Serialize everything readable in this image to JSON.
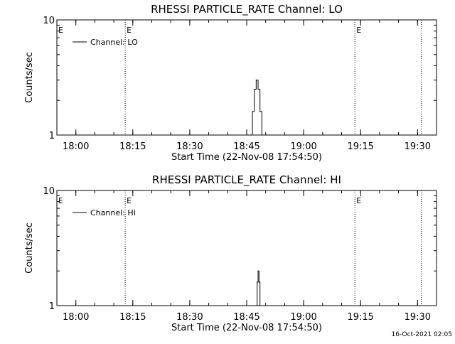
{
  "timestamp": "16-Oct-2021 02:05",
  "chart_data": [
    {
      "type": "line",
      "title": "RHESSI PARTICLE_RATE Channel: LO",
      "xlabel": "Start Time (22-Nov-08 17:54:50)",
      "ylabel": "Counts/sec",
      "y_scale": "log",
      "ylim": [
        1,
        10
      ],
      "y_ticks": [
        {
          "value": 1,
          "label": "1"
        },
        {
          "value": 10,
          "label": "10"
        }
      ],
      "xlim": [
        "17:55:00",
        "19:35:00"
      ],
      "x_ticks": [
        "18:00",
        "18:15",
        "18:30",
        "18:45",
        "19:00",
        "19:15",
        "19:30"
      ],
      "legend": {
        "placement": "top-left",
        "label": "Channel: LO"
      },
      "grid": false,
      "event_lines": [
        {
          "time": "18:13:00",
          "label": "E"
        },
        {
          "time": "19:13:30",
          "label": "E"
        },
        {
          "time": "19:31:00",
          "label": ""
        }
      ],
      "series": [
        {
          "name": "Channel: LO",
          "x": [
            "18:46:00",
            "18:46:30",
            "18:47:00",
            "18:47:30",
            "18:48:00",
            "18:48:30",
            "18:49:00"
          ],
          "y": [
            1,
            1.6,
            2.5,
            3,
            2.5,
            1.6,
            1
          ]
        }
      ]
    },
    {
      "type": "line",
      "title": "RHESSI PARTICLE_RATE Channel: HI",
      "xlabel": "Start Time (22-Nov-08 17:54:50)",
      "ylabel": "Counts/sec",
      "y_scale": "log",
      "ylim": [
        1,
        10
      ],
      "y_ticks": [
        {
          "value": 1,
          "label": "1"
        },
        {
          "value": 10,
          "label": "10"
        }
      ],
      "xlim": [
        "17:55:00",
        "19:35:00"
      ],
      "x_ticks": [
        "18:00",
        "18:15",
        "18:30",
        "18:45",
        "19:00",
        "19:15",
        "19:30"
      ],
      "legend": {
        "placement": "top-left",
        "label": "Channel: HI"
      },
      "grid": false,
      "event_lines": [
        {
          "time": "18:13:00",
          "label": "E"
        },
        {
          "time": "19:13:30",
          "label": "E"
        },
        {
          "time": "19:31:00",
          "label": ""
        }
      ],
      "series": [
        {
          "name": "Channel: HI",
          "x": [
            "18:47:30",
            "18:47:45",
            "18:48:00",
            "18:48:15",
            "18:48:30"
          ],
          "y": [
            1,
            1.6,
            2,
            1.6,
            1
          ]
        }
      ]
    }
  ]
}
